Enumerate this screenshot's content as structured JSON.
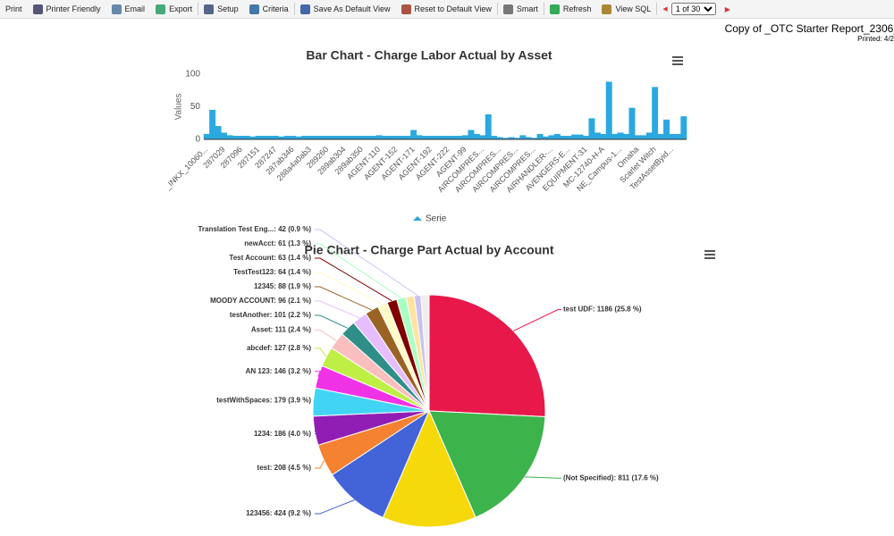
{
  "toolbar": {
    "items": [
      "Print",
      "Printer Friendly",
      "Email",
      "Export",
      "Setup",
      "Criteria",
      "Save As Default View",
      "Reset to Default View",
      "Smart",
      "Refresh",
      "View SQL"
    ],
    "page_select": "1 of 30"
  },
  "report": {
    "title": "Copy of _OTC Starter Report_2306_",
    "printed": "Printed: 4/2"
  },
  "chart_data": [
    {
      "type": "bar",
      "title": "Bar Chart - Charge Labor Actual by Asset",
      "y_label": "Values",
      "categories": [
        "_INKX_10060...",
        null,
        null,
        "287029",
        null,
        null,
        "287096",
        null,
        null,
        "287151",
        null,
        null,
        "287247",
        null,
        null,
        "287ab346",
        null,
        null,
        "288a4a0ab3",
        null,
        null,
        "289260",
        null,
        null,
        "289ab304",
        null,
        null,
        "289ab350",
        null,
        null,
        "AGENT-110",
        null,
        null,
        "AGENT-152",
        null,
        null,
        "AGENT-171",
        null,
        null,
        "AGENT-192",
        null,
        null,
        "AGENT-222",
        null,
        null,
        "AGENT-99",
        null,
        null,
        "AIRCOMPRES...",
        null,
        null,
        "AIRCOMPRES...",
        null,
        null,
        "AIRCOMPRES...",
        null,
        null,
        "AIRCOMPRES...",
        null,
        null,
        "AIRHANDLER-...",
        null,
        null,
        "AVENGERS-E...",
        null,
        null,
        "EQUIPMENT-31",
        null,
        null,
        "MC-12740-H-A",
        null,
        null,
        "NE_Campus-1...",
        null,
        null,
        "Omaha",
        null,
        null,
        "Scarlet Witch",
        null,
        null,
        "TestAssetByid...",
        null,
        null
      ],
      "series": [
        {
          "name": "Serie",
          "color": "#2aa8e0",
          "values": [
            8,
            45,
            20,
            10,
            6,
            5,
            5,
            5,
            4,
            5,
            5,
            5,
            5,
            4,
            5,
            5,
            4,
            5,
            5,
            5,
            5,
            5,
            5,
            5,
            5,
            5,
            5,
            5,
            5,
            5,
            6,
            5,
            5,
            5,
            5,
            5,
            14,
            6,
            5,
            5,
            5,
            5,
            5,
            5,
            5,
            6,
            14,
            8,
            6,
            38,
            5,
            3,
            2,
            3,
            2,
            6,
            3,
            2,
            8,
            4,
            6,
            8,
            5,
            5,
            7,
            7,
            5,
            32,
            10,
            8,
            88,
            8,
            10,
            8,
            48,
            6,
            6,
            10,
            80,
            8,
            30,
            8,
            8,
            35
          ]
        }
      ],
      "ylim": [
        0,
        100
      ],
      "yticks": [
        0,
        50,
        100
      ],
      "grid": false
    },
    {
      "type": "pie",
      "title": "Pie Chart - Charge Part Actual by Account",
      "categories": [
        "test UDF",
        "(Not Specified)",
        null,
        "123456",
        "test",
        "1234",
        "testWithSpaces",
        "AN 123",
        "abcdef",
        "Asset",
        "testAnother",
        "MOODY ACCOUNT",
        "12345",
        "TestTest123",
        "Test Account",
        "newAcct",
        null,
        "Translation Test Eng...",
        null
      ],
      "values": [
        1186,
        811,
        600,
        424,
        208,
        186,
        179,
        146,
        127,
        111,
        101,
        96,
        88,
        64,
        63,
        61,
        52,
        42,
        52
      ],
      "value_labels": [
        "test UDF: 1186 (25.8 %)",
        "(Not Specified): 811 (17.6 %)",
        null,
        "123456: 424 (9.2 %)",
        "test: 208 (4.5 %)",
        "1234: 186 (4.0 %)",
        "testWithSpaces: 179 (3.9 %)",
        "AN 123: 146 (3.2 %)",
        "abcdef: 127 (2.8 %)",
        "Asset: 111 (2.4 %)",
        "testAnother: 101 (2.2 %)",
        "MOODY ACCOUNT: 96 (2.1 %)",
        "12345: 88 (1.9 %)",
        "TestTest123: 64 (1.4 %)",
        "Test Account: 63 (1.4 %)",
        "newAcct: 61 (1.3 %)",
        null,
        "Translation Test Eng...: 42 (0.9 %)",
        null
      ],
      "colors": [
        "#e8184a",
        "#3cb44b",
        "#f5d90a",
        "#4363d8",
        "#f58231",
        "#911eb4",
        "#42d4f4",
        "#f032e6",
        "#bfef45",
        "#fabebe",
        "#2f8f88",
        "#e6beff",
        "#9a6324",
        "#fffac8",
        "#800000",
        "#aaffc3",
        "#ffe4a0",
        "#c9c2f0",
        "#eeeeee"
      ]
    }
  ]
}
